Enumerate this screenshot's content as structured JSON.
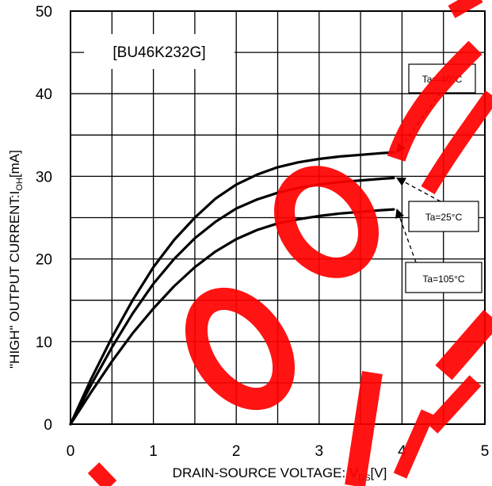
{
  "chart_data": {
    "type": "line",
    "title": "[BU46K232G]",
    "xlabel": "DRAIN-SOURCE VOLTAGE: V",
    "xlabel_sub": "DS",
    "xlabel_unit": "[V]",
    "ylabel": "\"HIGH\" OUTPUT CURRENT:I",
    "ylabel_sub": "OH",
    "ylabel_unit": "[mA]",
    "xlim": [
      0,
      5
    ],
    "ylim": [
      0,
      50
    ],
    "x_ticks": [
      0,
      1,
      2,
      3,
      4,
      5
    ],
    "y_ticks": [
      0,
      10,
      20,
      30,
      40,
      50
    ],
    "x_tick_labels": [
      "0",
      "1",
      "2",
      "3",
      "4",
      "5"
    ],
    "y_tick_labels": [
      "0",
      "10",
      "20",
      "30",
      "40",
      "50"
    ],
    "grid": true,
    "series": [
      {
        "name": "Ta=-40°C",
        "x": [
          0,
          0.25,
          0.5,
          0.75,
          1.0,
          1.25,
          1.5,
          1.75,
          2.0,
          2.25,
          2.5,
          2.75,
          3.0,
          3.25,
          3.5,
          3.75,
          3.9
        ],
        "y": [
          0,
          5.5,
          10.5,
          15.0,
          19.0,
          22.3,
          25.0,
          27.3,
          29.0,
          30.2,
          31.1,
          31.7,
          32.1,
          32.4,
          32.6,
          32.8,
          32.9
        ]
      },
      {
        "name": "Ta=25°C",
        "x": [
          0,
          0.25,
          0.5,
          0.75,
          1.0,
          1.25,
          1.5,
          1.75,
          2.0,
          2.25,
          2.5,
          2.75,
          3.0,
          3.25,
          3.5,
          3.75,
          3.9
        ],
        "y": [
          0,
          4.8,
          9.3,
          13.4,
          17.0,
          20.0,
          22.5,
          24.5,
          26.1,
          27.2,
          28.0,
          28.6,
          29.0,
          29.3,
          29.5,
          29.7,
          29.8
        ]
      },
      {
        "name": "Ta=105°C",
        "x": [
          0,
          0.25,
          0.5,
          0.75,
          1.0,
          1.25,
          1.5,
          1.75,
          2.0,
          2.25,
          2.5,
          2.75,
          3.0,
          3.25,
          3.5,
          3.75,
          3.9
        ],
        "y": [
          0,
          3.9,
          7.6,
          11.0,
          14.0,
          16.7,
          19.0,
          20.9,
          22.4,
          23.5,
          24.3,
          24.8,
          25.2,
          25.5,
          25.7,
          25.9,
          26.0
        ]
      }
    ],
    "legend_labels": [
      "Ta=-40°C",
      "Ta=25°C",
      "Ta=105°C"
    ],
    "line_color": "#000000",
    "watermark_color": "#ff0000"
  }
}
